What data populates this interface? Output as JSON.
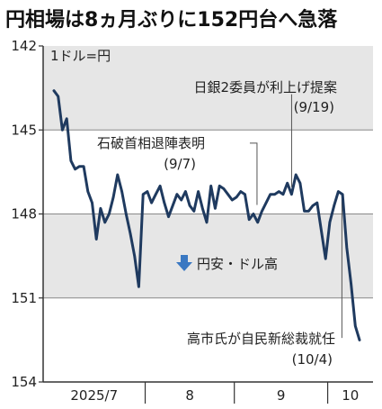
{
  "title": "円相場は8ヵ月ぶりに152円台へ急落",
  "chart_data": {
    "type": "line",
    "unit_label": "1ドル=円",
    "y_axis": {
      "ticks": [
        142,
        145,
        148,
        151,
        154
      ],
      "range": [
        142,
        154
      ],
      "inverted": true
    },
    "x_axis": {
      "labels": [
        "2025/7",
        "8",
        "9",
        "10"
      ]
    },
    "bands": [
      [
        142,
        145
      ],
      [
        148,
        151
      ]
    ],
    "grid": true,
    "colors": {
      "line": "#1f3a5f",
      "band": "#e6e6e6",
      "arrow": "#3a78c2",
      "axis": "#333333"
    },
    "series": [
      {
        "values": [
          143.6,
          143.8,
          145.0,
          144.6,
          146.1,
          146.4,
          146.3,
          146.3,
          147.2,
          147.6,
          148.9,
          147.8,
          148.3,
          148.0,
          147.4,
          146.6,
          147.2,
          148.0,
          148.7,
          149.5,
          150.6,
          147.3,
          147.2,
          147.6,
          147.3,
          147.0,
          147.6,
          148.1,
          147.7,
          147.3,
          147.5,
          147.2,
          147.7,
          147.9,
          147.2,
          147.8,
          148.3,
          147.0,
          147.8,
          147.0,
          147.1,
          147.3,
          147.5,
          147.4,
          147.2,
          147.3,
          148.2,
          148.0,
          148.3,
          147.9,
          147.6,
          147.3,
          147.3,
          147.2,
          147.3,
          146.9,
          147.3,
          146.6,
          146.9,
          147.9,
          147.9,
          147.7,
          147.6,
          148.6,
          149.6,
          148.3,
          147.7,
          147.2,
          147.3,
          149.2,
          150.5,
          152.0,
          152.5
        ]
      }
    ],
    "month_starts": [
      0,
      22,
      43,
      65
    ],
    "annotations": [
      {
        "label": "日銀2委員が利上げ提案",
        "date": "(9/19)"
      },
      {
        "label": "石破首相退陣表明",
        "date": "(9/7)"
      },
      {
        "label": "円安・ドル高"
      },
      {
        "label": "高市氏が自民新総裁就任",
        "date": "(10/4)"
      }
    ]
  }
}
